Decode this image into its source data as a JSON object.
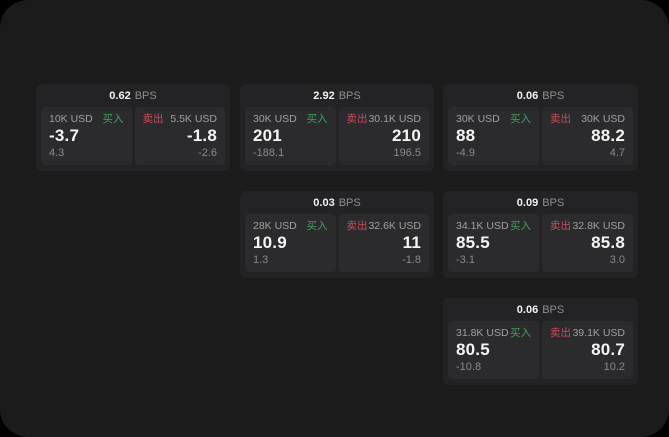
{
  "labels": {
    "bps_unit": "BPS",
    "buy": "买入",
    "sell": "卖出"
  },
  "colors": {
    "screen_bg": "#1b1b1c",
    "card_bg": "#232325",
    "panel_bg": "#2b2b2d",
    "buy_green": "#40a060",
    "sell_red": "#c44f5c",
    "value_white": "#f4f4f4",
    "muted_gray": "#8a8a8a"
  },
  "cards": [
    {
      "bps": "0.62",
      "buy": {
        "amount": "10K USD",
        "price": "-3.7",
        "delta": "4.3"
      },
      "sell": {
        "amount": "5.5K USD",
        "price": "-1.8",
        "delta": "-2.6"
      }
    },
    {
      "bps": "2.92",
      "buy": {
        "amount": "30K USD",
        "price": "201",
        "delta": "-188.1"
      },
      "sell": {
        "amount": "30.1K USD",
        "price": "210",
        "delta": "196.5"
      }
    },
    {
      "bps": "0.06",
      "buy": {
        "amount": "30K USD",
        "price": "88",
        "delta": "-4.9"
      },
      "sell": {
        "amount": "30K USD",
        "price": "88.2",
        "delta": "4.7"
      }
    },
    {
      "bps": "0.03",
      "buy": {
        "amount": "28K USD",
        "price": "10.9",
        "delta": "1.3"
      },
      "sell": {
        "amount": "32.6K USD",
        "price": "11",
        "delta": "-1.8"
      }
    },
    {
      "bps": "0.09",
      "buy": {
        "amount": "34.1K USD",
        "price": "85.5",
        "delta": "-3.1"
      },
      "sell": {
        "amount": "32.8K USD",
        "price": "85.8",
        "delta": "3.0"
      }
    },
    {
      "bps": "0.06",
      "buy": {
        "amount": "31.8K USD",
        "price": "80.5",
        "delta": "-10.8"
      },
      "sell": {
        "amount": "39.1K USD",
        "price": "80.7",
        "delta": "10.2"
      }
    }
  ]
}
